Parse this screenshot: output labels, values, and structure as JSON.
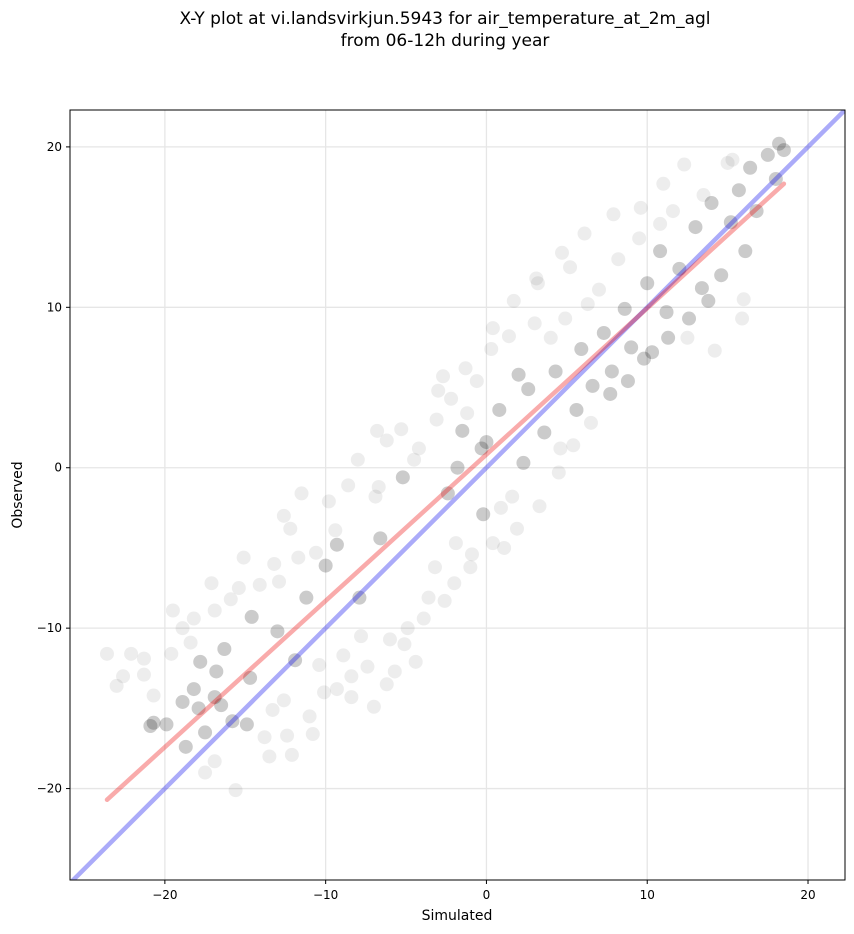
{
  "chart_data": {
    "type": "scatter",
    "title_lines": [
      "X-Y plot at vi.landsvirkjun.5943 for air_temperature_at_2m_agl",
      "from 06-12h during year"
    ],
    "xlabel": "Simulated",
    "ylabel": "Observed",
    "xlim": [
      -25.9,
      22.3
    ],
    "ylim": [
      -25.7,
      22.3
    ],
    "xticks": [
      -20,
      -10,
      0,
      10,
      20
    ],
    "yticks": [
      -20,
      -10,
      0,
      10,
      20
    ],
    "xtick_labels": [
      "−20",
      "−10",
      "0",
      "10",
      "20"
    ],
    "ytick_labels": [
      "−20",
      "−10",
      "0",
      "10",
      "20"
    ],
    "grid": true,
    "marker_color": "#000000",
    "marker_alpha": 0.07,
    "reference_line": {
      "name": "1:1",
      "color": "#0000ee",
      "alpha": 0.33,
      "points": [
        [
          -25.9,
          -25.9
        ],
        [
          22.3,
          22.3
        ]
      ]
    },
    "fit_line": {
      "name": "fit",
      "color": "#ee0000",
      "alpha": 0.33,
      "points": [
        [
          -23.6,
          -20.7
        ],
        [
          18.5,
          17.7
        ]
      ]
    },
    "points": [
      [
        -23.6,
        -11.6
      ],
      [
        -22.1,
        -11.6
      ],
      [
        -22.6,
        -13.0
      ],
      [
        -23.0,
        -13.6
      ],
      [
        -21.3,
        -11.9
      ],
      [
        -21.3,
        -12.9
      ],
      [
        -20.7,
        -14.2
      ],
      [
        -20.9,
        -16.1
      ],
      [
        -19.6,
        -11.6
      ],
      [
        -19.5,
        -8.9
      ],
      [
        -18.9,
        -10.0
      ],
      [
        -18.4,
        -10.9
      ],
      [
        -18.2,
        -13.8
      ],
      [
        -17.8,
        -12.1
      ],
      [
        -17.1,
        -7.2
      ],
      [
        -16.9,
        -8.9
      ],
      [
        -17.5,
        -16.5
      ],
      [
        -16.9,
        -18.3
      ],
      [
        -16.5,
        -14.8
      ],
      [
        -16.3,
        -11.3
      ],
      [
        -15.6,
        -20.1
      ],
      [
        -15.4,
        -7.5
      ],
      [
        -15.1,
        -5.6
      ],
      [
        -14.6,
        -9.3
      ],
      [
        -14.7,
        -13.1
      ],
      [
        -13.8,
        -16.8
      ],
      [
        -13.5,
        -18.0
      ],
      [
        -13.2,
        -6.0
      ],
      [
        -13.0,
        -10.2
      ],
      [
        -12.6,
        -14.5
      ],
      [
        -12.2,
        -3.8
      ],
      [
        -12.1,
        -17.9
      ],
      [
        -11.7,
        -5.6
      ],
      [
        -11.2,
        -8.1
      ],
      [
        -11.0,
        -15.5
      ],
      [
        -10.4,
        -12.3
      ],
      [
        -10.0,
        -6.1
      ],
      [
        -9.8,
        -2.1
      ],
      [
        -10.1,
        -14.0
      ],
      [
        -9.3,
        -13.8
      ],
      [
        -8.6,
        -1.1
      ],
      [
        -8.4,
        -14.3
      ],
      [
        -7.9,
        -8.1
      ],
      [
        -7.4,
        -12.4
      ],
      [
        -7.0,
        -14.9
      ],
      [
        -6.6,
        -4.4
      ],
      [
        -6.7,
        -1.2
      ],
      [
        -6.8,
        2.3
      ],
      [
        -6.2,
        1.7
      ],
      [
        -5.7,
        -12.7
      ],
      [
        -5.2,
        -0.6
      ],
      [
        -4.9,
        -10.0
      ],
      [
        -4.5,
        0.5
      ],
      [
        -4.4,
        -12.1
      ],
      [
        -3.6,
        -8.1
      ],
      [
        -3.1,
        3.0
      ],
      [
        -2.7,
        5.7
      ],
      [
        -2.4,
        -1.6
      ],
      [
        -2.2,
        4.3
      ],
      [
        -2.0,
        -7.2
      ],
      [
        -1.8,
        0.0
      ],
      [
        -1.5,
        2.3
      ],
      [
        -1.2,
        3.4
      ],
      [
        -1.0,
        -6.2
      ],
      [
        -0.6,
        5.4
      ],
      [
        -0.3,
        1.2
      ],
      [
        0.0,
        1.6
      ],
      [
        0.3,
        7.4
      ],
      [
        0.4,
        -4.7
      ],
      [
        0.8,
        3.6
      ],
      [
        1.1,
        -5.0
      ],
      [
        1.4,
        8.2
      ],
      [
        1.6,
        -1.8
      ],
      [
        2.0,
        5.8
      ],
      [
        2.3,
        0.3
      ],
      [
        2.6,
        4.9
      ],
      [
        3.0,
        9.0
      ],
      [
        3.2,
        11.5
      ],
      [
        3.6,
        2.2
      ],
      [
        4.0,
        8.1
      ],
      [
        4.3,
        6.0
      ],
      [
        4.6,
        1.2
      ],
      [
        4.9,
        9.3
      ],
      [
        5.2,
        12.5
      ],
      [
        5.6,
        3.6
      ],
      [
        5.9,
        7.4
      ],
      [
        6.3,
        10.2
      ],
      [
        6.6,
        5.1
      ],
      [
        7.0,
        11.1
      ],
      [
        7.3,
        8.4
      ],
      [
        7.8,
        6.0
      ],
      [
        8.2,
        13.0
      ],
      [
        8.6,
        9.9
      ],
      [
        9.0,
        7.5
      ],
      [
        9.5,
        14.3
      ],
      [
        10.0,
        11.5
      ],
      [
        10.3,
        7.2
      ],
      [
        10.8,
        13.5
      ],
      [
        11.2,
        9.7
      ],
      [
        11.6,
        16.0
      ],
      [
        12.0,
        12.4
      ],
      [
        12.5,
        8.1
      ],
      [
        13.0,
        15.0
      ],
      [
        13.4,
        11.2
      ],
      [
        14.0,
        16.5
      ],
      [
        14.2,
        7.3
      ],
      [
        14.6,
        12.0
      ],
      [
        15.0,
        19.0
      ],
      [
        15.2,
        15.3
      ],
      [
        15.7,
        17.3
      ],
      [
        15.9,
        9.3
      ],
      [
        16.1,
        13.5
      ],
      [
        16.4,
        18.7
      ],
      [
        16.8,
        16.0
      ],
      [
        17.5,
        19.5
      ],
      [
        18.0,
        18.0
      ],
      [
        18.2,
        20.2
      ],
      [
        18.5,
        19.8
      ],
      [
        16.0,
        10.5
      ],
      [
        15.3,
        19.2
      ],
      [
        -17.5,
        -19.0
      ],
      [
        -16.9,
        -14.3
      ],
      [
        -20.7,
        -15.9
      ],
      [
        -19.9,
        -16.0
      ],
      [
        -18.9,
        -14.6
      ],
      [
        -18.7,
        -17.4
      ],
      [
        -17.9,
        -15.0
      ],
      [
        -16.8,
        -12.7
      ],
      [
        -15.8,
        -15.8
      ],
      [
        -14.9,
        -16.0
      ],
      [
        -13.3,
        -15.1
      ],
      [
        -12.4,
        -16.7
      ],
      [
        -11.9,
        -12.0
      ],
      [
        -10.8,
        -16.6
      ],
      [
        -8.9,
        -11.7
      ],
      [
        -8.4,
        -13.0
      ],
      [
        -7.8,
        -10.5
      ],
      [
        -6.2,
        -13.5
      ],
      [
        -6.0,
        -10.7
      ],
      [
        -5.1,
        -11.0
      ],
      [
        -3.9,
        -9.4
      ],
      [
        -3.2,
        -6.2
      ],
      [
        -2.6,
        -8.3
      ],
      [
        -1.9,
        -4.7
      ],
      [
        -0.9,
        -5.4
      ],
      [
        -0.2,
        -2.9
      ],
      [
        0.9,
        -2.5
      ],
      [
        1.9,
        -3.8
      ],
      [
        3.3,
        -2.4
      ],
      [
        4.5,
        -0.3
      ],
      [
        5.4,
        1.4
      ],
      [
        6.5,
        2.8
      ],
      [
        7.7,
        4.6
      ],
      [
        8.8,
        5.4
      ],
      [
        9.8,
        6.8
      ],
      [
        11.3,
        8.1
      ],
      [
        12.6,
        9.3
      ],
      [
        13.8,
        10.4
      ],
      [
        -12.6,
        -3.0
      ],
      [
        -11.5,
        -1.6
      ],
      [
        -9.4,
        -3.9
      ],
      [
        -8.0,
        0.5
      ],
      [
        -6.9,
        -1.8
      ],
      [
        -5.3,
        2.4
      ],
      [
        -4.2,
        1.2
      ],
      [
        -3.0,
        4.8
      ],
      [
        -1.3,
        6.2
      ],
      [
        0.4,
        8.7
      ],
      [
        1.7,
        10.4
      ],
      [
        3.1,
        11.8
      ],
      [
        4.7,
        13.4
      ],
      [
        6.1,
        14.6
      ],
      [
        7.9,
        15.8
      ],
      [
        9.6,
        16.2
      ],
      [
        11.0,
        17.7
      ],
      [
        12.3,
        18.9
      ],
      [
        13.5,
        17.0
      ],
      [
        10.8,
        15.2
      ],
      [
        -18.2,
        -9.4
      ],
      [
        -15.9,
        -8.2
      ],
      [
        -14.1,
        -7.3
      ],
      [
        -12.9,
        -7.1
      ],
      [
        -10.6,
        -5.3
      ],
      [
        -9.3,
        -4.8
      ]
    ]
  }
}
